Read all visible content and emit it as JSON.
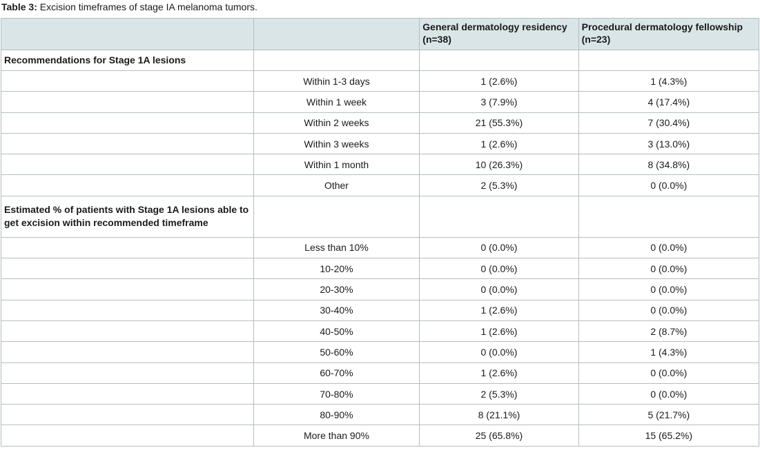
{
  "caption": {
    "label": "Table 3:",
    "text": " Excision timeframes of stage IA melanoma tumors."
  },
  "header": {
    "col3": "General dermatology residency (n=38)",
    "col4": "Procedural dermatology fellowship (n=23)"
  },
  "sections": [
    {
      "title": "Recommendations for Stage 1A lesions",
      "rows": [
        {
          "label": "Within 1-3 days",
          "residency": "1 (2.6%)",
          "fellowship": "1 (4.3%)"
        },
        {
          "label": "Within 1 week",
          "residency": "3 (7.9%)",
          "fellowship": "4 (17.4%)"
        },
        {
          "label": "Within 2 weeks",
          "residency": "21 (55.3%)",
          "fellowship": "7 (30.4%)"
        },
        {
          "label": "Within 3 weeks",
          "residency": "1 (2.6%)",
          "fellowship": "3 (13.0%)"
        },
        {
          "label": "Within 1 month",
          "residency": "10 (26.3%)",
          "fellowship": "8 (34.8%)"
        },
        {
          "label": "Other",
          "residency": "2 (5.3%)",
          "fellowship": "0 (0.0%)"
        }
      ]
    },
    {
      "title": "Estimated % of patients with Stage 1A lesions able to get excision within recommended timeframe",
      "rows": [
        {
          "label": "Less than 10%",
          "residency": "0 (0.0%)",
          "fellowship": "0 (0.0%)"
        },
        {
          "label": "10-20%",
          "residency": "0 (0.0%)",
          "fellowship": "0 (0.0%)"
        },
        {
          "label": "20-30%",
          "residency": "0 (0.0%)",
          "fellowship": "0 (0.0%)"
        },
        {
          "label": "30-40%",
          "residency": "1 (2.6%)",
          "fellowship": "0 (0.0%)"
        },
        {
          "label": "40-50%",
          "residency": "1 (2.6%)",
          "fellowship": "2 (8.7%)"
        },
        {
          "label": "50-60%",
          "residency": "0 (0.0%)",
          "fellowship": "1 (4.3%)"
        },
        {
          "label": "60-70%",
          "residency": "1 (2.6%)",
          "fellowship": "0 (0.0%)"
        },
        {
          "label": "70-80%",
          "residency": "2 (5.3%)",
          "fellowship": "0 (0.0%)"
        },
        {
          "label": "80-90%",
          "residency": "8 (21.1%)",
          "fellowship": "5 (21.7%)"
        },
        {
          "label": "More than 90%",
          "residency": "25 (65.8%)",
          "fellowship": "15 (65.2%)"
        }
      ]
    }
  ]
}
